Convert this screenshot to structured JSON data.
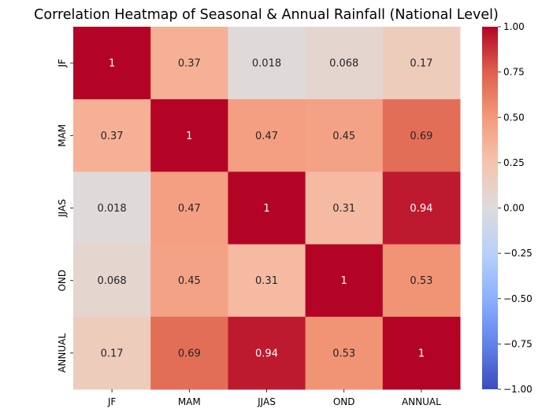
{
  "chart_data": {
    "type": "heatmap",
    "title": "Correlation Heatmap of Seasonal & Annual Rainfall (National Level)",
    "x_categories": [
      "JF",
      "MAM",
      "JJAS",
      "OND",
      "ANNUAL"
    ],
    "y_categories": [
      "JF",
      "MAM",
      "JJAS",
      "OND",
      "ANNUAL"
    ],
    "values": [
      [
        1,
        0.37,
        0.018,
        0.068,
        0.17
      ],
      [
        0.37,
        1,
        0.47,
        0.45,
        0.69
      ],
      [
        0.018,
        0.47,
        1,
        0.31,
        0.94
      ],
      [
        0.068,
        0.45,
        0.31,
        1,
        0.53
      ],
      [
        0.17,
        0.69,
        0.94,
        0.53,
        1
      ]
    ],
    "annotations": [
      [
        "1",
        "0.37",
        "0.018",
        "0.068",
        "0.17"
      ],
      [
        "0.37",
        "1",
        "0.47",
        "0.45",
        "0.69"
      ],
      [
        "0.018",
        "0.47",
        "1",
        "0.31",
        "0.94"
      ],
      [
        "0.068",
        "0.45",
        "0.31",
        "1",
        "0.53"
      ],
      [
        "0.17",
        "0.69",
        "0.94",
        "0.53",
        "1"
      ]
    ],
    "colormap": "coolwarm",
    "colorbar": {
      "range": [
        -1,
        1
      ],
      "ticks": [
        1.0,
        0.75,
        0.5,
        0.25,
        0.0,
        -0.25,
        -0.5,
        -0.75,
        -1.0
      ],
      "tick_labels": [
        "1.00",
        "0.75",
        "0.50",
        "0.25",
        "0.00",
        "−0.25",
        "−0.50",
        "−0.75",
        "−1.00"
      ]
    }
  }
}
